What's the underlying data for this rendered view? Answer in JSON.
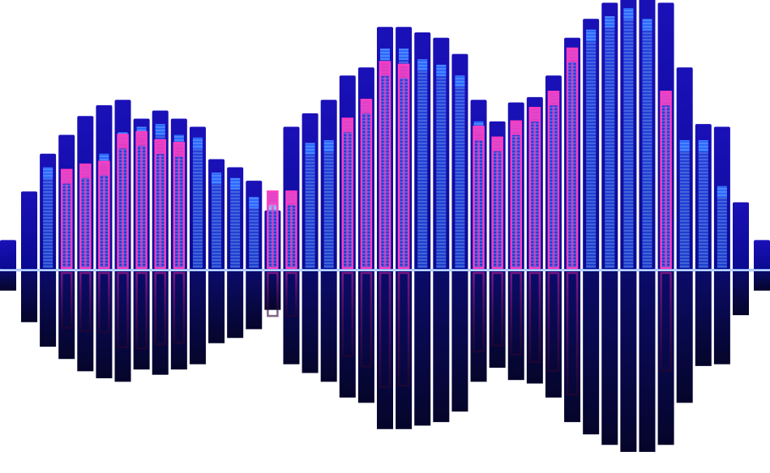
{
  "visualizer": {
    "bar_levels": [
      0.11,
      0.29,
      0.43,
      0.5,
      0.57,
      0.61,
      0.63,
      0.56,
      0.59,
      0.56,
      0.53,
      0.41,
      0.38,
      0.33,
      0.22,
      0.53,
      0.58,
      0.63,
      0.72,
      0.75,
      0.9,
      0.9,
      0.88,
      0.86,
      0.8,
      0.63,
      0.55,
      0.62,
      0.64,
      0.72,
      0.86,
      0.93,
      0.99,
      1.03,
      1.03,
      0.99,
      0.75,
      0.54,
      0.53,
      0.25,
      0.11
    ],
    "inner_levels": [
      null,
      null,
      0.38,
      0.37,
      0.39,
      0.43,
      0.51,
      0.53,
      0.54,
      0.5,
      0.49,
      0.36,
      0.34,
      0.27,
      0.29,
      0.29,
      0.47,
      0.48,
      0.56,
      0.63,
      0.82,
      0.82,
      0.78,
      0.76,
      0.72,
      0.55,
      0.49,
      0.55,
      0.6,
      0.66,
      0.82,
      0.89,
      0.94,
      0.97,
      0.93,
      0.66,
      0.48,
      0.48,
      0.31,
      null,
      null
    ],
    "pink_levels": [
      null,
      null,
      null,
      0.37,
      0.39,
      0.4,
      0.5,
      0.51,
      0.48,
      0.47,
      null,
      null,
      null,
      null,
      0.29,
      0.29,
      null,
      null,
      0.56,
      0.63,
      0.77,
      0.76,
      null,
      null,
      null,
      0.53,
      0.49,
      0.55,
      0.6,
      0.66,
      0.82,
      null,
      null,
      null,
      null,
      0.66,
      null,
      null,
      null,
      null,
      null
    ],
    "colors": {
      "background": "#ffffff",
      "bar_top": "#1a10b8",
      "bar_base": "#0a0a90",
      "tube_blue": "#2a6bff",
      "tube_pink": "#ff3cc0",
      "center_line": "#7fa8ff",
      "reflection": "#05052a"
    }
  }
}
